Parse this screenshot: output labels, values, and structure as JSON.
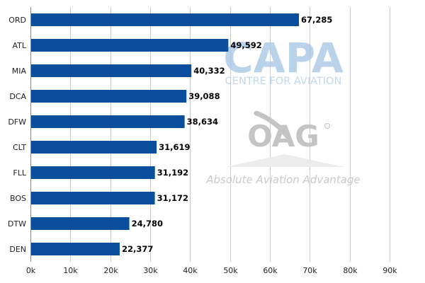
{
  "chart_data": {
    "type": "bar",
    "orientation": "horizontal",
    "categories": [
      "ORD",
      "ATL",
      "MIA",
      "DCA",
      "DFW",
      "CLT",
      "FLL",
      "BOS",
      "DTW",
      "DEN"
    ],
    "values": [
      67285,
      49592,
      40332,
      39088,
      38634,
      31619,
      31192,
      31172,
      24780,
      22377
    ],
    "value_labels": [
      "67,285",
      "49,592",
      "40,332",
      "39,088",
      "38,634",
      "31,619",
      "31,192",
      "31,172",
      "24,780",
      "22,377"
    ],
    "title": "",
    "xlabel": "",
    "ylabel": "",
    "xlim": [
      0,
      90000
    ],
    "x_ticks": [
      0,
      10000,
      20000,
      30000,
      40000,
      50000,
      60000,
      70000,
      80000,
      90000
    ],
    "x_tick_labels": [
      "0k",
      "10k",
      "20k",
      "30k",
      "40k",
      "50k",
      "60k",
      "70k",
      "80k",
      "90k"
    ],
    "grid": true,
    "legend": "none",
    "bar_color": "#0a4f9e",
    "grid_color": "#cccccc"
  },
  "watermarks": {
    "capa_logo": "CAPA",
    "capa_subtitle": "CENTRE FOR AVIATION",
    "oag_logo": "OAG",
    "oag_tagline": "Absolute Aviation Advantage"
  }
}
